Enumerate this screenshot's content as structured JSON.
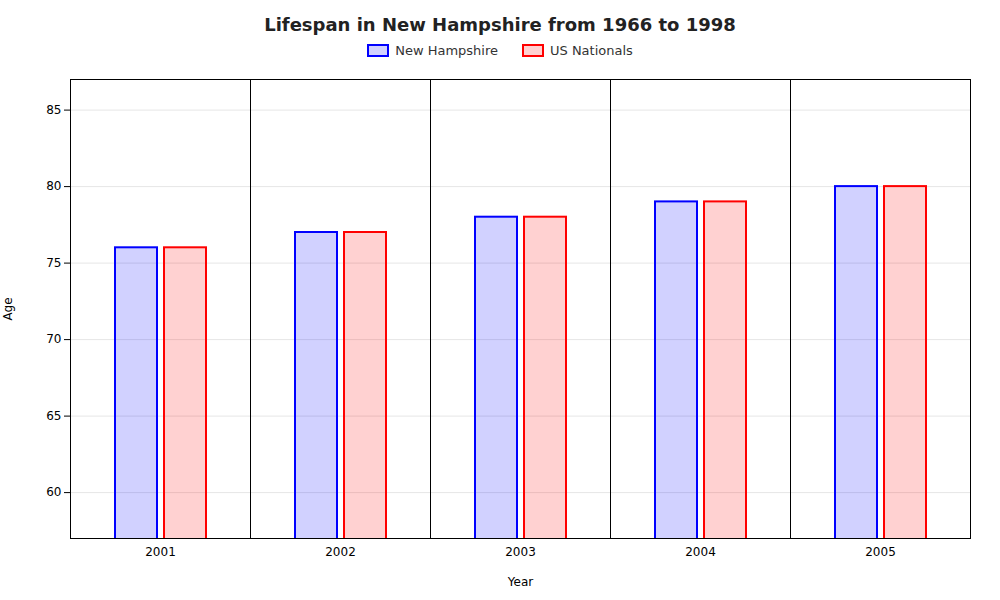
{
  "chart_data": {
    "type": "bar",
    "title": "Lifespan in New Hampshire from 1966 to 1998",
    "xlabel": "Year",
    "ylabel": "Age",
    "categories": [
      "2001",
      "2002",
      "2003",
      "2004",
      "2005"
    ],
    "series": [
      {
        "name": "New Hampshire",
        "color": "#0000ff",
        "values": [
          76,
          77,
          78,
          79,
          80
        ]
      },
      {
        "name": "US Nationals",
        "color": "#ff0000",
        "values": [
          76,
          77,
          78,
          79,
          80
        ]
      }
    ],
    "ylim": [
      57,
      87
    ],
    "yticks": [
      60,
      65,
      70,
      75,
      80,
      85
    ],
    "grid": true,
    "legend": "top"
  }
}
